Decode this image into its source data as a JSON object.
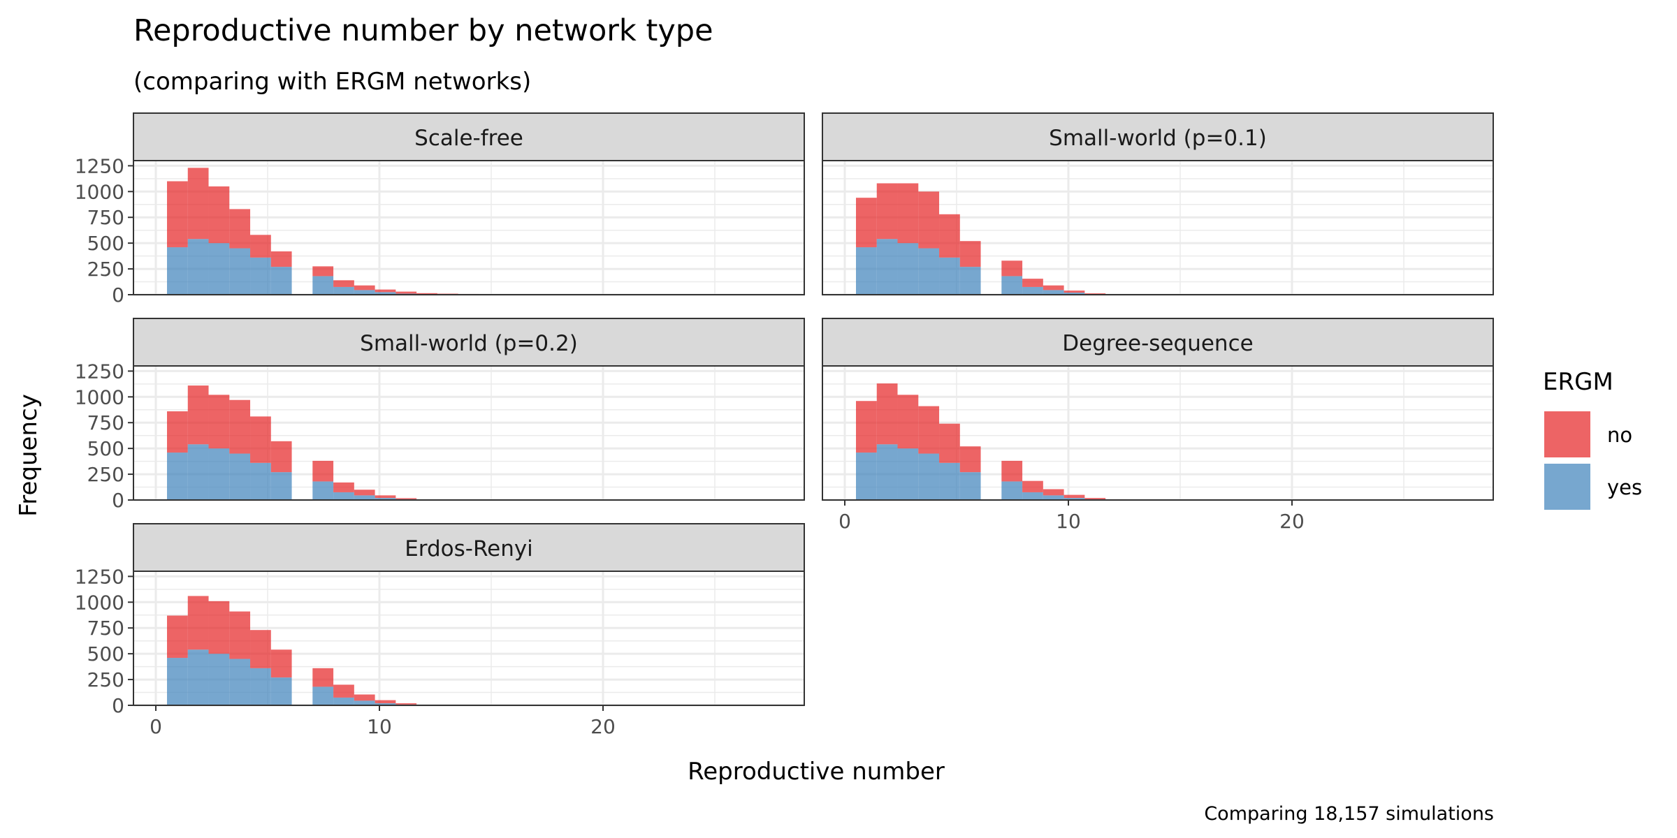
{
  "chart_data": {
    "type": "bar",
    "stacked": true,
    "title": "Reproductive number by network type",
    "subtitle": "(comparing with ERGM networks)",
    "xlabel": "Reproductive number",
    "ylabel": "Frequency",
    "caption": "Comparing 18,157 simulations",
    "xlim": [
      -1,
      29
    ],
    "ylim": [
      0,
      1300
    ],
    "xticks": [
      0,
      10,
      20
    ],
    "yticks": [
      0,
      250,
      500,
      750,
      1000,
      1250
    ],
    "xtick_labels": [
      "0",
      "10",
      "20"
    ],
    "ytick_labels": [
      "0",
      "250",
      "500",
      "750",
      "1000",
      "1250"
    ],
    "grid": true,
    "legend": {
      "title": "ERGM",
      "position": "right",
      "entries": [
        {
          "label": "no",
          "color": "#E41A1C"
        },
        {
          "label": "yes",
          "color": "#377EB8"
        }
      ]
    },
    "bin_width": 0.93,
    "bin_starts": [
      0.5,
      1.43,
      2.36,
      3.29,
      4.22,
      5.15,
      6.08,
      7.01,
      7.94,
      8.87,
      9.8,
      10.73,
      11.66,
      12.59,
      13.52,
      14.45,
      15.38,
      16.31,
      17.24,
      18.17,
      19.1,
      20.03,
      20.96,
      21.89
    ],
    "panels": [
      {
        "name": "Scale-free",
        "series": [
          {
            "name": "yes",
            "values": [
              460,
              540,
              500,
              450,
              360,
              270,
              0,
              180,
              75,
              45,
              25,
              10,
              5,
              3,
              2,
              1,
              1,
              0,
              0,
              0,
              0,
              0,
              0,
              0
            ]
          },
          {
            "name": "no",
            "values": [
              640,
              690,
              550,
              380,
              220,
              150,
              0,
              95,
              65,
              45,
              25,
              20,
              10,
              7,
              5,
              4,
              4,
              0,
              4,
              0,
              0,
              0,
              4,
              0
            ]
          }
        ]
      },
      {
        "name": "Small-world (p=0.1)",
        "series": [
          {
            "name": "yes",
            "values": [
              460,
              540,
              500,
              450,
              360,
              270,
              0,
              180,
              75,
              45,
              20,
              5,
              3,
              0,
              0,
              0,
              0,
              0,
              0,
              0,
              0,
              0,
              0,
              0
            ]
          },
          {
            "name": "no",
            "values": [
              480,
              540,
              580,
              550,
              420,
              250,
              0,
              150,
              80,
              45,
              20,
              8,
              2,
              0,
              0,
              0,
              0,
              0,
              0,
              0,
              0,
              0,
              0,
              0
            ]
          }
        ]
      },
      {
        "name": "Small-world (p=0.2)",
        "series": [
          {
            "name": "yes",
            "values": [
              460,
              540,
              500,
              450,
              360,
              270,
              0,
              180,
              75,
              45,
              20,
              8,
              3,
              0,
              0,
              0,
              0,
              0,
              0,
              0,
              0,
              0,
              0,
              0
            ]
          },
          {
            "name": "no",
            "values": [
              400,
              570,
              520,
              520,
              450,
              300,
              0,
              200,
              95,
              55,
              25,
              10,
              2,
              0,
              0,
              0,
              0,
              0,
              0,
              0,
              0,
              0,
              0,
              0
            ]
          }
        ]
      },
      {
        "name": "Degree-sequence",
        "series": [
          {
            "name": "yes",
            "values": [
              460,
              540,
              500,
              450,
              360,
              270,
              0,
              180,
              75,
              45,
              20,
              8,
              3,
              0,
              0,
              0,
              0,
              0,
              0,
              0,
              0,
              0,
              0,
              0
            ]
          },
          {
            "name": "no",
            "values": [
              500,
              590,
              520,
              460,
              380,
              250,
              0,
              200,
              110,
              60,
              30,
              12,
              4,
              0,
              0,
              0,
              0,
              0,
              0,
              0,
              0,
              0,
              0,
              0
            ]
          }
        ]
      },
      {
        "name": "Erdos-Renyi",
        "series": [
          {
            "name": "yes",
            "values": [
              460,
              540,
              500,
              450,
              360,
              270,
              0,
              180,
              75,
              45,
              20,
              8,
              3,
              0,
              0,
              0,
              0,
              0,
              0,
              0,
              0,
              0,
              0,
              0
            ]
          },
          {
            "name": "no",
            "values": [
              410,
              520,
              510,
              460,
              370,
              270,
              0,
              180,
              125,
              60,
              30,
              12,
              2,
              0,
              0,
              0,
              0,
              0,
              0,
              0,
              0,
              0,
              0,
              0
            ]
          }
        ]
      }
    ]
  }
}
